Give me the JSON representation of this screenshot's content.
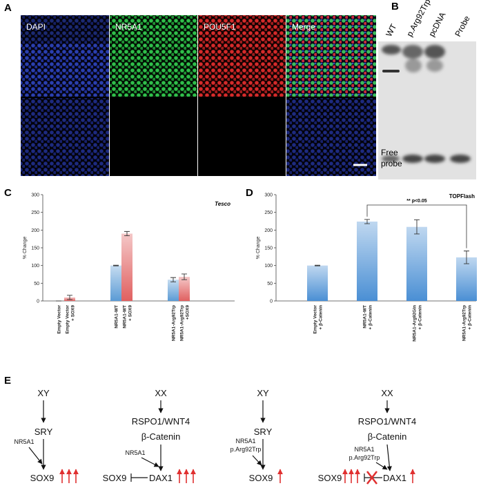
{
  "figure": {
    "panel_letters": [
      "A",
      "B",
      "C",
      "D",
      "E"
    ],
    "panel_a": {
      "labels": [
        "DAPI",
        "NR5A1",
        "POU5F1",
        "Merge"
      ]
    },
    "panel_b": {
      "lanes": [
        "WT",
        "p.Arg92Trp",
        "pcDNA",
        "Probe"
      ],
      "free_probe": [
        "Free",
        "probe"
      ]
    },
    "panel_e": {
      "diagrams": [
        {
          "sex": "XY",
          "factor": [
            "SRY"
          ],
          "regulator": [
            "NR5A1"
          ],
          "target": "SOX9"
        },
        {
          "sex": "XX",
          "factor": [
            "RSPO1/WNT4",
            "β-Catenin"
          ],
          "regulator": [
            "NR5A1"
          ],
          "target": "DAX1",
          "repressed": "SOX9"
        },
        {
          "sex": "XY",
          "factor": [
            "SRY"
          ],
          "regulator": [
            "NR5A1",
            "p.Arg92Trp"
          ],
          "target": "SOX9"
        },
        {
          "sex": "XX",
          "factor": [
            "RSPO1/WNT4",
            "β-Catenin"
          ],
          "regulator": [
            "NR5A1",
            "p.Arg92Trp"
          ],
          "target": "DAX1",
          "repressed": "SOX9"
        }
      ]
    }
  },
  "chart_data": [
    {
      "type": "bar",
      "title": "Tesco",
      "y_label": "% Change",
      "categories": [
        [
          "Empty Vector"
        ],
        [
          "Empty Vector",
          "+ SOX9"
        ],
        [
          "NR5A1-WT"
        ],
        [
          "NR5A1-WT",
          "+ SOX9"
        ],
        [
          "NR5A1-Arg92Trp"
        ],
        [
          "NR5A1-Arg92Trp",
          "+SOX9"
        ]
      ],
      "values": [
        0,
        10,
        100,
        190,
        60,
        68
      ],
      "errors": [
        0,
        6,
        1,
        6,
        6,
        8
      ],
      "colors": [
        "#5b9bd5",
        "#e06060",
        "#5b9bd5",
        "#e06060",
        "#5b9bd5",
        "#e06060"
      ],
      "ylim": [
        0,
        300
      ],
      "yticks": [
        0,
        50,
        100,
        150,
        200,
        250,
        300
      ]
    },
    {
      "type": "bar",
      "title": "TOPFlash",
      "y_label": "% Change",
      "annotation": "** p<0.05",
      "categories": [
        [
          "Empty Vector",
          "+ β-Catenin"
        ],
        [
          "NR5A1-WT",
          "+ β-Catenin"
        ],
        [
          "NR5A1-Arg92Gln",
          "+ β-Catenin"
        ],
        [
          "NR5A1-Arg92Trp",
          "+ β-Catenin"
        ]
      ],
      "values": [
        100,
        224,
        209,
        123
      ],
      "errors": [
        1,
        6,
        20,
        18
      ],
      "color": "#4a8fd4",
      "ylim": [
        0,
        300
      ],
      "yticks": [
        0,
        50,
        100,
        150,
        200,
        250,
        300
      ]
    }
  ]
}
